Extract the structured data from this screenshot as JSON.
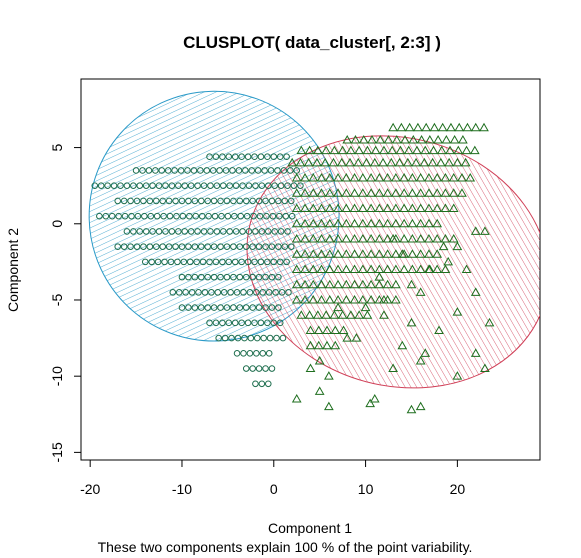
{
  "chart_data": {
    "type": "scatter",
    "title": "CLUSPLOT( data_cluster[, 2:3] )",
    "subtitle": "These two components explain 100 % of the point variability.",
    "xlabel": "Component 1",
    "ylabel": "Component 2",
    "xlim": [
      -21,
      29
    ],
    "ylim": [
      -15.5,
      9.5
    ],
    "x_ticks": [
      -20,
      -10,
      0,
      10,
      20
    ],
    "y_ticks": [
      -15,
      -10,
      -5,
      0,
      5
    ],
    "grid": false,
    "colors": {
      "cluster1_ellipse": "#2A9AC8",
      "cluster2_ellipse": "#D04058",
      "cluster1_points": "#1E6E4E",
      "cluster2_points": "#1E6E1E"
    },
    "clusters": [
      {
        "marker": "circle",
        "ellipse": {
          "cx": -6.5,
          "cy": 0.5,
          "rx": 13.6,
          "ry": 8.2,
          "rotation_deg": -70
        },
        "rows": [
          {
            "y": 4.4,
            "x_start": -7,
            "x_end": 2,
            "step": 0.7
          },
          {
            "y": 3.5,
            "x_start": -15,
            "x_end": 3,
            "step": 0.7
          },
          {
            "y": 2.5,
            "x_start": -19.5,
            "x_end": 3,
            "step": 0.7
          },
          {
            "y": 1.5,
            "x_start": -17,
            "x_end": 2,
            "step": 0.7
          },
          {
            "y": 0.5,
            "x_start": -19,
            "x_end": 2,
            "step": 0.7
          },
          {
            "y": -0.5,
            "x_start": -16,
            "x_end": 2,
            "step": 0.7
          },
          {
            "y": -1.5,
            "x_start": -17,
            "x_end": 2,
            "step": 0.7
          },
          {
            "y": -2.5,
            "x_start": -14,
            "x_end": 2,
            "step": 0.7
          },
          {
            "y": -3.5,
            "x_start": -10,
            "x_end": 1,
            "step": 0.7
          },
          {
            "y": -4.5,
            "x_start": -11,
            "x_end": 2,
            "step": 0.7
          },
          {
            "y": -5.5,
            "x_start": -10,
            "x_end": 1,
            "step": 0.7
          },
          {
            "y": -6.5,
            "x_start": -7,
            "x_end": 1,
            "step": 0.7
          },
          {
            "y": -7.5,
            "x_start": -6,
            "x_end": 1,
            "step": 0.7
          },
          {
            "y": -8.5,
            "x_start": -4,
            "x_end": 0,
            "step": 0.7
          },
          {
            "y": -9.5,
            "x_start": -3,
            "x_end": 0,
            "step": 0.7
          },
          {
            "y": -10.5,
            "x_start": -2,
            "x_end": 0,
            "step": 0.7
          }
        ]
      },
      {
        "marker": "triangle",
        "ellipse": {
          "cx": 13.5,
          "cy": -2.5,
          "rx": 13.5,
          "ry": 10.0,
          "rotation_deg": -75
        },
        "rows": [
          {
            "y": 6.3,
            "x_start": 13,
            "x_end": 23,
            "step": 0.9
          },
          {
            "y": 5.5,
            "x_start": 8,
            "x_end": 21,
            "step": 0.9
          },
          {
            "y": 4.8,
            "x_start": 3,
            "x_end": 22,
            "step": 0.9
          },
          {
            "y": 4.0,
            "x_start": 2,
            "x_end": 21,
            "step": 0.9
          },
          {
            "y": 3.0,
            "x_start": 2.5,
            "x_end": 22,
            "step": 0.9
          },
          {
            "y": 2.0,
            "x_start": 2.5,
            "x_end": 21,
            "step": 0.9
          },
          {
            "y": 1.0,
            "x_start": 2.5,
            "x_end": 20,
            "step": 0.9
          },
          {
            "y": 0.0,
            "x_start": 2.5,
            "x_end": 18,
            "step": 0.9
          },
          {
            "y": -1.0,
            "x_start": 2.5,
            "x_end": 20,
            "step": 0.9
          },
          {
            "y": -2.0,
            "x_start": 2.5,
            "x_end": 18,
            "step": 0.9
          },
          {
            "y": -3.0,
            "x_start": 2.5,
            "x_end": 19,
            "step": 0.9
          },
          {
            "y": -4.0,
            "x_start": 2.5,
            "x_end": 14,
            "step": 0.9
          },
          {
            "y": -5.0,
            "x_start": 2.5,
            "x_end": 14,
            "step": 0.9
          },
          {
            "y": -6.0,
            "x_start": 3,
            "x_end": 11,
            "step": 0.9
          },
          {
            "y": -7.0,
            "x_start": 4,
            "x_end": 8,
            "step": 0.9
          },
          {
            "y": -8.0,
            "x_start": 4,
            "x_end": 7,
            "step": 0.9
          }
        ],
        "points": [
          [
            22,
            -0.5
          ],
          [
            23,
            -0.5
          ],
          [
            20,
            -1.5
          ],
          [
            22,
            -4.5
          ],
          [
            23.5,
            -6.5
          ],
          [
            20,
            -5.8
          ],
          [
            22,
            -8.5
          ],
          [
            23,
            -9.5
          ],
          [
            20,
            -10.0
          ],
          [
            16,
            -9.0
          ],
          [
            13,
            -9.5
          ],
          [
            11,
            -11.5
          ],
          [
            10.5,
            -11.8
          ],
          [
            15,
            -12.2
          ],
          [
            16,
            -12.0
          ],
          [
            6,
            -12.0
          ],
          [
            5,
            -11.0
          ],
          [
            2.5,
            -11.5
          ],
          [
            6,
            -10.0
          ],
          [
            5,
            -9.0
          ],
          [
            8,
            -7.5
          ],
          [
            12,
            -6.0
          ],
          [
            15,
            -6.5
          ],
          [
            9,
            -7.5
          ],
          [
            14,
            -8.0
          ],
          [
            16.5,
            -8.5
          ],
          [
            18,
            -7.0
          ],
          [
            7,
            -5.5
          ],
          [
            10,
            -5.5
          ],
          [
            12,
            -5.0
          ],
          [
            17,
            -3.0
          ],
          [
            21,
            -3.0
          ],
          [
            19,
            -2.5
          ],
          [
            13,
            -1.0
          ],
          [
            14,
            -2.0
          ],
          [
            15,
            -4.0
          ],
          [
            16,
            -4.5
          ],
          [
            11.5,
            -3.5
          ],
          [
            18.5,
            -1.5
          ],
          [
            4,
            -9.5
          ]
        ]
      }
    ]
  }
}
